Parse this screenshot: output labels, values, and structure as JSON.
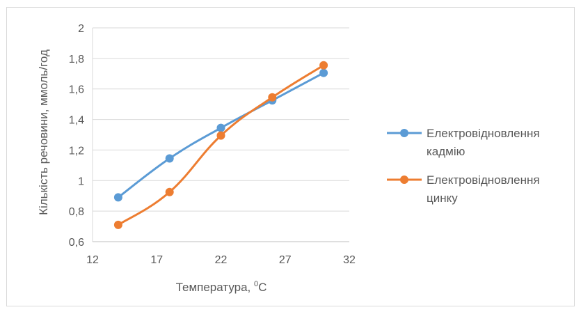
{
  "chart_data": {
    "type": "line",
    "title": "",
    "xlabel_main": "Температура, ",
    "xlabel_sup": "0",
    "xlabel_unit": "C",
    "ylabel": "Кількість речовини,  ммоль/год",
    "xlim": [
      12,
      32
    ],
    "ylim": [
      0.6,
      2
    ],
    "x_ticks": [
      12,
      17,
      22,
      27,
      32
    ],
    "y_ticks": [
      0.6,
      0.8,
      1,
      1.2,
      1.4,
      1.6,
      1.8,
      2
    ],
    "x_tick_labels": [
      "12",
      "17",
      "22",
      "27",
      "32"
    ],
    "y_tick_labels": [
      "0,6",
      "0,8",
      "1",
      "1,2",
      "1,4",
      "1,6",
      "1,8",
      "2"
    ],
    "grid": "horizontal",
    "legend_position": "right",
    "series": [
      {
        "name": "Електровідновлення кадмію",
        "legend_lines": [
          "Електровідновлення",
          "кадмію"
        ],
        "color": "#5b9bd5",
        "x": [
          14,
          18,
          22,
          26,
          30
        ],
        "y": [
          0.89,
          1.145,
          1.345,
          1.525,
          1.705
        ]
      },
      {
        "name": "Електровідновлення цинку",
        "legend_lines": [
          "Електровідновлення",
          "цинку"
        ],
        "color": "#ed7d31",
        "x": [
          14,
          18,
          22,
          26,
          30
        ],
        "y": [
          0.71,
          0.925,
          1.295,
          1.545,
          1.755
        ]
      }
    ]
  }
}
